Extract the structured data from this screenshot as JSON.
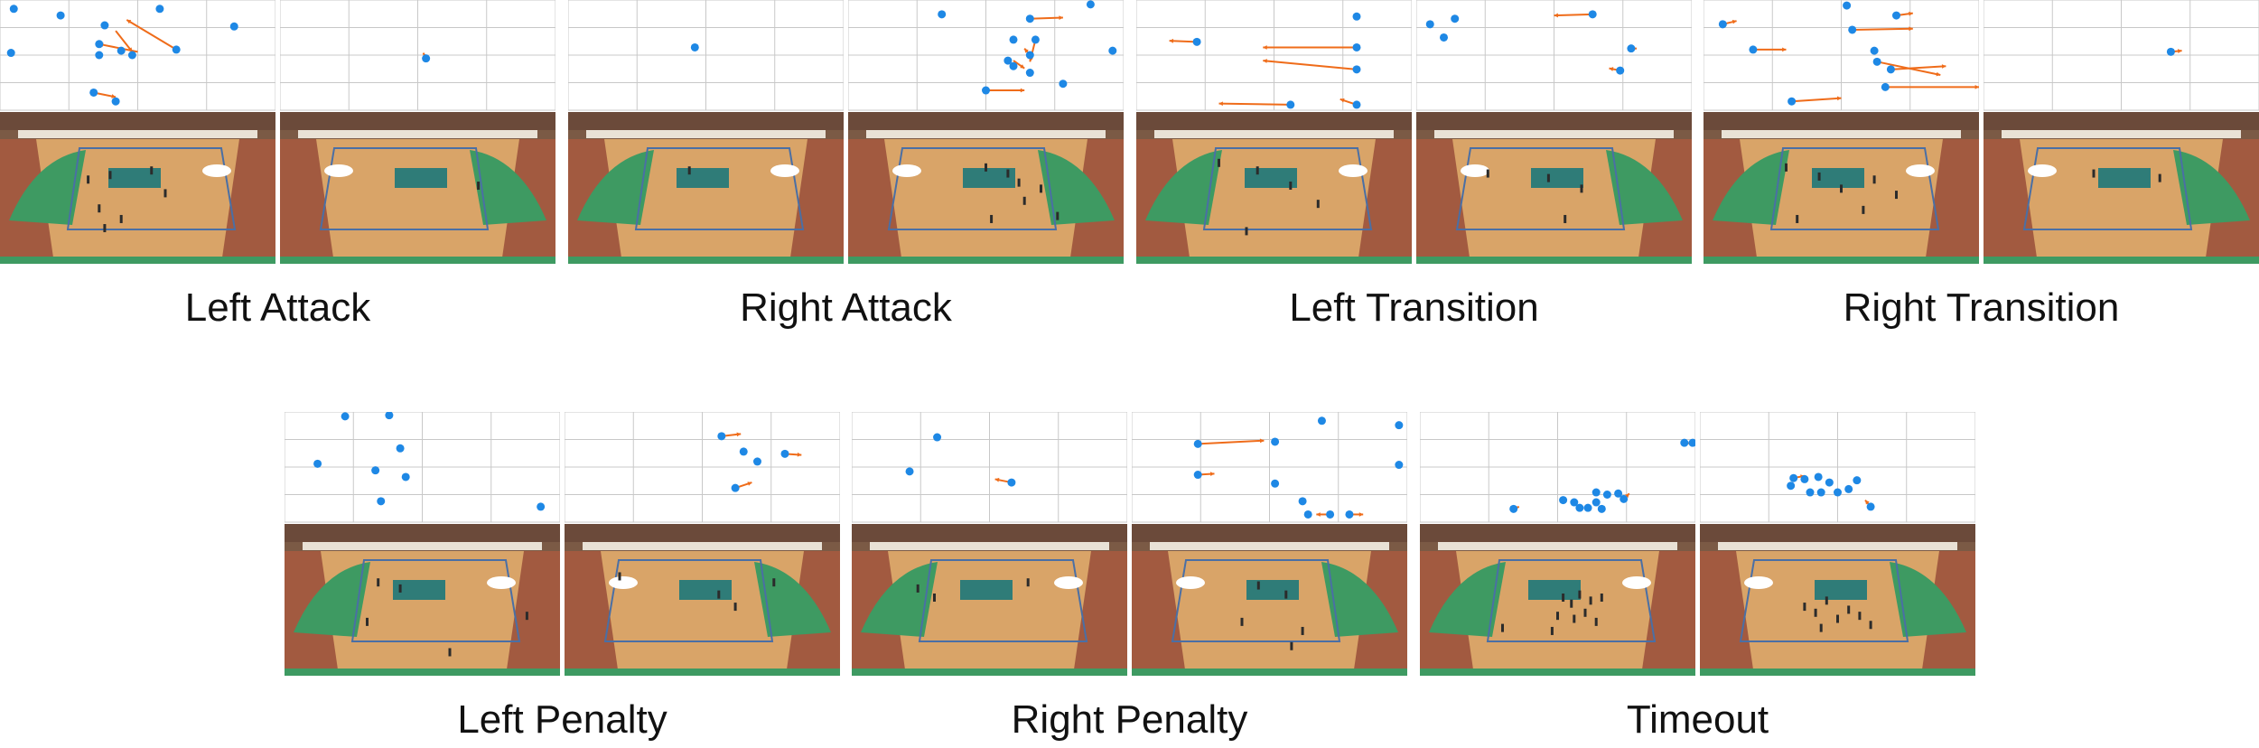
{
  "colors": {
    "dot": "#1e88e5",
    "arrow": "#ef6c1a",
    "grid": "#c8c8c8",
    "floor": "#d9a468",
    "floor_dark": "#c58a4f",
    "zone": "#3e9a62",
    "center": "#2f7c78",
    "line": "#4a6fa5",
    "stands": "#6b4a3a",
    "banner": "#e9e2d6",
    "tribune": "#8a3b2f"
  },
  "panels": [
    {
      "caption": "Left Attack",
      "mirror_court": [
        false,
        true
      ],
      "dots": [
        [
          [
            0.05,
            0.08
          ],
          [
            0.22,
            0.14
          ],
          [
            0.38,
            0.23
          ],
          [
            0.58,
            0.08
          ],
          [
            0.85,
            0.24
          ],
          [
            0.36,
            0.4
          ],
          [
            0.44,
            0.46
          ],
          [
            0.64,
            0.45
          ],
          [
            0.36,
            0.5
          ],
          [
            0.48,
            0.5
          ],
          [
            0.04,
            0.48
          ],
          [
            0.34,
            0.84
          ],
          [
            0.42,
            0.92
          ]
        ],
        [
          [
            0.53,
            0.53
          ]
        ]
      ],
      "arrows": [
        [
          [
            0.64,
            0.45,
            0.46,
            0.18
          ],
          [
            0.42,
            0.28,
            0.48,
            0.47
          ],
          [
            0.5,
            0.47,
            0.36,
            0.4
          ],
          [
            0.34,
            0.84,
            0.42,
            0.88
          ]
        ],
        [
          [
            0.53,
            0.53,
            0.52,
            0.48
          ]
        ]
      ],
      "persons": [
        [
          [
            0.32,
            0.46
          ],
          [
            0.4,
            0.43
          ],
          [
            0.55,
            0.4
          ],
          [
            0.36,
            0.65
          ],
          [
            0.44,
            0.72
          ],
          [
            0.6,
            0.55
          ],
          [
            0.38,
            0.78
          ]
        ],
        [
          [
            0.72,
            0.5
          ]
        ]
      ]
    },
    {
      "caption": "Right Attack",
      "mirror_court": [
        false,
        true
      ],
      "dots": [
        [
          [
            0.46,
            0.43
          ]
        ],
        [
          [
            0.34,
            0.13
          ],
          [
            0.88,
            0.04
          ],
          [
            0.66,
            0.17
          ],
          [
            0.6,
            0.36
          ],
          [
            0.68,
            0.36
          ],
          [
            0.66,
            0.5
          ],
          [
            0.58,
            0.55
          ],
          [
            0.6,
            0.6
          ],
          [
            0.66,
            0.66
          ],
          [
            0.78,
            0.76
          ],
          [
            0.5,
            0.82
          ],
          [
            0.96,
            0.46
          ]
        ]
      ],
      "arrows": [
        [],
        [
          [
            0.66,
            0.17,
            0.78,
            0.16
          ],
          [
            0.6,
            0.55,
            0.64,
            0.62
          ],
          [
            0.68,
            0.36,
            0.66,
            0.56
          ],
          [
            0.5,
            0.82,
            0.64,
            0.82
          ],
          [
            0.66,
            0.5,
            0.64,
            0.44
          ]
        ]
      ],
      "persons": [
        [
          [
            0.44,
            0.4
          ]
        ],
        [
          [
            0.5,
            0.38
          ],
          [
            0.58,
            0.42
          ],
          [
            0.62,
            0.48
          ],
          [
            0.7,
            0.52
          ],
          [
            0.64,
            0.6
          ],
          [
            0.52,
            0.72
          ],
          [
            0.76,
            0.7
          ]
        ]
      ]
    },
    {
      "caption": "Left Transition",
      "mirror_court": [
        false,
        true
      ],
      "dots": [
        [
          [
            0.22,
            0.38
          ],
          [
            0.8,
            0.15
          ],
          [
            0.8,
            0.43
          ],
          [
            0.8,
            0.63
          ],
          [
            0.56,
            0.95
          ],
          [
            0.8,
            0.95
          ]
        ],
        [
          [
            0.05,
            0.22
          ],
          [
            0.14,
            0.17
          ],
          [
            0.1,
            0.34
          ],
          [
            0.64,
            0.13
          ],
          [
            0.78,
            0.44
          ],
          [
            0.74,
            0.64
          ]
        ]
      ],
      "arrows": [
        [
          [
            0.22,
            0.38,
            0.12,
            0.37
          ],
          [
            0.8,
            0.43,
            0.46,
            0.43
          ],
          [
            0.8,
            0.63,
            0.46,
            0.55
          ],
          [
            0.8,
            0.95,
            0.74,
            0.9
          ],
          [
            0.56,
            0.95,
            0.3,
            0.94
          ]
        ],
        [
          [
            0.64,
            0.13,
            0.5,
            0.14
          ],
          [
            0.74,
            0.64,
            0.7,
            0.62
          ],
          [
            0.78,
            0.44,
            0.8,
            0.44
          ]
        ]
      ],
      "persons": [
        [
          [
            0.3,
            0.35
          ],
          [
            0.44,
            0.4
          ],
          [
            0.56,
            0.5
          ],
          [
            0.66,
            0.62
          ],
          [
            0.4,
            0.8
          ]
        ],
        [
          [
            0.26,
            0.42
          ],
          [
            0.48,
            0.45
          ],
          [
            0.6,
            0.52
          ],
          [
            0.54,
            0.72
          ]
        ]
      ]
    },
    {
      "caption": "Right Transition",
      "mirror_court": [
        false,
        true
      ],
      "dots": [
        [
          [
            0.07,
            0.22
          ],
          [
            0.18,
            0.45
          ],
          [
            0.32,
            0.92
          ],
          [
            0.52,
            0.05
          ],
          [
            0.54,
            0.27
          ],
          [
            0.62,
            0.46
          ],
          [
            0.63,
            0.56
          ],
          [
            0.68,
            0.63
          ],
          [
            0.66,
            0.79
          ],
          [
            0.7,
            0.14
          ]
        ],
        [
          [
            0.68,
            0.47
          ]
        ]
      ],
      "arrows": [
        [
          [
            0.07,
            0.22,
            0.12,
            0.19
          ],
          [
            0.18,
            0.45,
            0.3,
            0.45
          ],
          [
            0.32,
            0.92,
            0.5,
            0.89
          ],
          [
            0.54,
            0.27,
            0.76,
            0.26
          ],
          [
            0.63,
            0.56,
            0.86,
            0.68
          ],
          [
            0.66,
            0.79,
            1.1,
            0.79
          ],
          [
            0.68,
            0.63,
            0.88,
            0.6
          ],
          [
            0.7,
            0.14,
            0.76,
            0.12
          ]
        ],
        [
          [
            0.68,
            0.47,
            0.72,
            0.46
          ]
        ]
      ],
      "persons": [
        [
          [
            0.3,
            0.38
          ],
          [
            0.42,
            0.44
          ],
          [
            0.5,
            0.52
          ],
          [
            0.62,
            0.46
          ],
          [
            0.7,
            0.56
          ],
          [
            0.34,
            0.72
          ],
          [
            0.58,
            0.66
          ]
        ],
        [
          [
            0.4,
            0.42
          ],
          [
            0.64,
            0.45
          ]
        ]
      ]
    },
    {
      "caption": "Left Penalty",
      "mirror_court": [
        false,
        true
      ],
      "dots": [
        [
          [
            0.22,
            0.04
          ],
          [
            0.38,
            0.03
          ],
          [
            0.12,
            0.47
          ],
          [
            0.42,
            0.33
          ],
          [
            0.33,
            0.53
          ],
          [
            0.44,
            0.59
          ],
          [
            0.35,
            0.81
          ],
          [
            0.93,
            0.86
          ]
        ],
        [
          [
            0.57,
            0.22
          ],
          [
            0.65,
            0.36
          ],
          [
            0.7,
            0.45
          ],
          [
            0.8,
            0.38
          ],
          [
            0.62,
            0.69
          ]
        ]
      ],
      "arrows": [
        [],
        [
          [
            0.57,
            0.22,
            0.64,
            0.2
          ],
          [
            0.8,
            0.38,
            0.86,
            0.39
          ],
          [
            0.62,
            0.69,
            0.68,
            0.64
          ]
        ]
      ],
      "persons": [
        [
          [
            0.34,
            0.4
          ],
          [
            0.42,
            0.44
          ],
          [
            0.3,
            0.66
          ],
          [
            0.88,
            0.62
          ],
          [
            0.6,
            0.86
          ]
        ],
        [
          [
            0.56,
            0.48
          ],
          [
            0.62,
            0.56
          ],
          [
            0.76,
            0.4
          ],
          [
            0.2,
            0.36
          ]
        ]
      ]
    },
    {
      "caption": "Right Penalty",
      "mirror_court": [
        false,
        true
      ],
      "dots": [
        [
          [
            0.31,
            0.23
          ],
          [
            0.21,
            0.54
          ],
          [
            0.58,
            0.64
          ]
        ],
        [
          [
            0.24,
            0.29
          ],
          [
            0.52,
            0.27
          ],
          [
            0.69,
            0.08
          ],
          [
            0.97,
            0.12
          ],
          [
            0.24,
            0.57
          ],
          [
            0.52,
            0.65
          ],
          [
            0.62,
            0.81
          ],
          [
            0.97,
            0.48
          ],
          [
            0.64,
            0.93
          ],
          [
            0.72,
            0.93
          ],
          [
            0.79,
            0.93
          ]
        ]
      ],
      "arrows": [
        [
          [
            0.58,
            0.64,
            0.52,
            0.61
          ]
        ],
        [
          [
            0.24,
            0.29,
            0.48,
            0.26
          ],
          [
            0.24,
            0.57,
            0.3,
            0.56
          ],
          [
            0.72,
            0.93,
            0.67,
            0.93
          ],
          [
            0.79,
            0.93,
            0.84,
            0.93
          ]
        ]
      ],
      "persons": [
        [
          [
            0.24,
            0.44
          ],
          [
            0.3,
            0.5
          ],
          [
            0.64,
            0.4
          ]
        ],
        [
          [
            0.46,
            0.42
          ],
          [
            0.56,
            0.48
          ],
          [
            0.62,
            0.72
          ],
          [
            0.58,
            0.82
          ],
          [
            0.4,
            0.66
          ]
        ]
      ]
    },
    {
      "caption": "Timeout",
      "mirror_court": [
        false,
        true
      ],
      "dots": [
        [
          [
            0.96,
            0.28
          ],
          [
            0.99,
            0.28
          ],
          [
            0.34,
            0.88
          ],
          [
            0.52,
            0.8
          ],
          [
            0.58,
            0.87
          ],
          [
            0.61,
            0.87
          ],
          [
            0.64,
            0.82
          ],
          [
            0.68,
            0.75
          ],
          [
            0.64,
            0.73
          ],
          [
            0.72,
            0.74
          ],
          [
            0.74,
            0.79
          ],
          [
            0.66,
            0.88
          ],
          [
            0.56,
            0.82
          ]
        ],
        [
          [
            0.34,
            0.6
          ],
          [
            0.33,
            0.67
          ],
          [
            0.38,
            0.61
          ],
          [
            0.43,
            0.59
          ],
          [
            0.4,
            0.73
          ],
          [
            0.44,
            0.73
          ],
          [
            0.47,
            0.64
          ],
          [
            0.5,
            0.73
          ],
          [
            0.54,
            0.7
          ],
          [
            0.57,
            0.62
          ],
          [
            0.62,
            0.86
          ]
        ]
      ],
      "arrows": [
        [
          [
            0.96,
            0.28,
            1.0,
            0.29
          ],
          [
            0.34,
            0.88,
            0.36,
            0.86
          ],
          [
            0.74,
            0.79,
            0.76,
            0.74
          ]
        ],
        [
          [
            0.62,
            0.86,
            0.6,
            0.8
          ],
          [
            0.34,
            0.6,
            0.38,
            0.58
          ]
        ]
      ],
      "persons": [
        [
          [
            0.52,
            0.5
          ],
          [
            0.55,
            0.54
          ],
          [
            0.58,
            0.48
          ],
          [
            0.6,
            0.6
          ],
          [
            0.62,
            0.52
          ],
          [
            0.64,
            0.66
          ],
          [
            0.56,
            0.64
          ],
          [
            0.5,
            0.62
          ],
          [
            0.66,
            0.5
          ],
          [
            0.48,
            0.72
          ],
          [
            0.3,
            0.7
          ]
        ],
        [
          [
            0.38,
            0.56
          ],
          [
            0.42,
            0.6
          ],
          [
            0.46,
            0.52
          ],
          [
            0.5,
            0.64
          ],
          [
            0.54,
            0.58
          ],
          [
            0.58,
            0.62
          ],
          [
            0.62,
            0.68
          ],
          [
            0.44,
            0.7
          ]
        ]
      ]
    }
  ]
}
